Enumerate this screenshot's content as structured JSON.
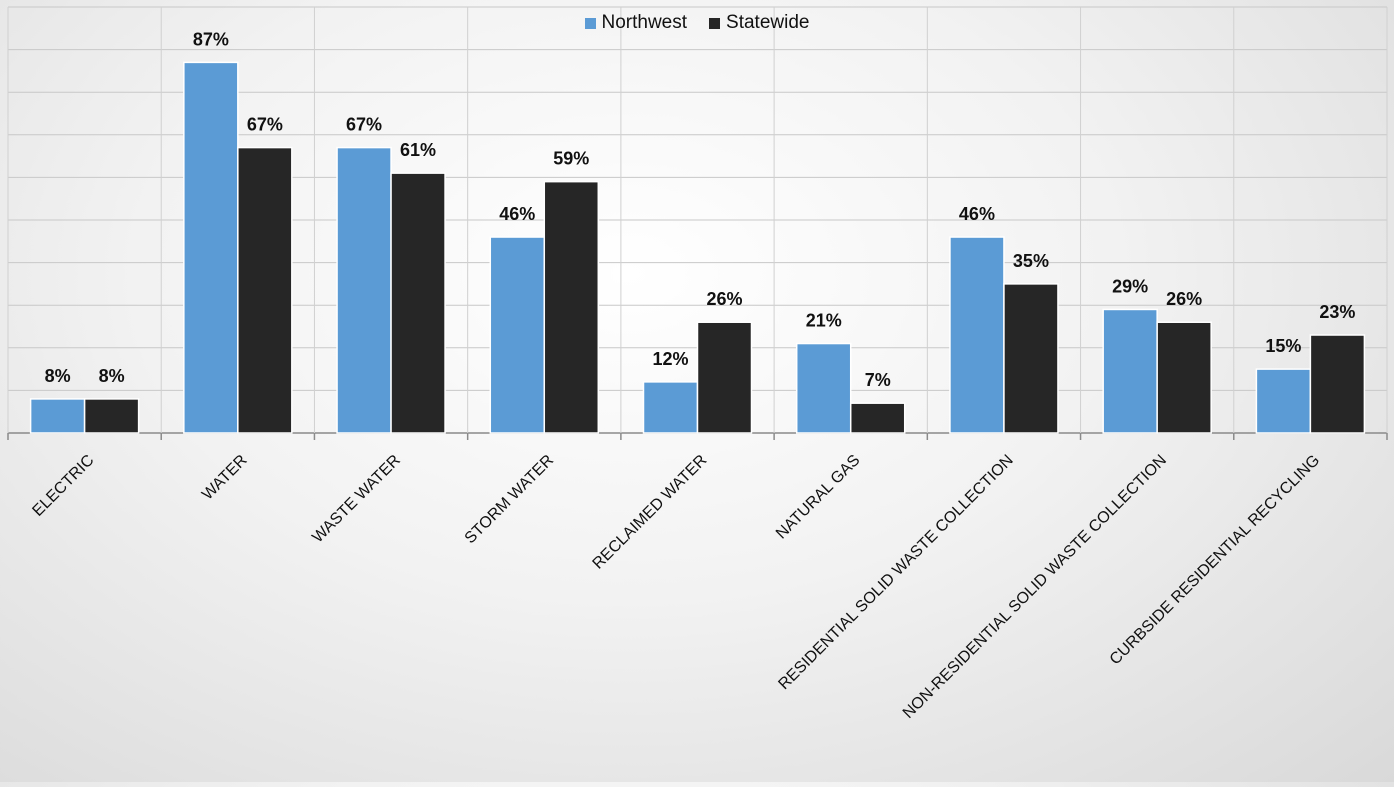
{
  "chart_data": {
    "type": "bar",
    "title": "",
    "xlabel": "",
    "ylabel": "",
    "ylim": [
      0,
      100
    ],
    "grid": true,
    "legend_position": "top-center",
    "categories": [
      "ELECTRIC",
      "WATER",
      "WASTE WATER",
      "STORM WATER",
      "RECLAIMED WATER",
      "NATURAL GAS",
      "RESIDENTIAL SOLID WASTE COLLECTION",
      "NON-RESIDENTIAL SOLID WASTE COLLECTION",
      "CURBSIDE RESIDENTIAL RECYCLING"
    ],
    "series": [
      {
        "name": "Northwest",
        "color": "#5b9bd5",
        "values": [
          8,
          87,
          67,
          46,
          12,
          21,
          46,
          29,
          15
        ],
        "labels": [
          "8%",
          "87%",
          "67%",
          "46%",
          "12%",
          "21%",
          "46%",
          "29%",
          "15%"
        ]
      },
      {
        "name": "Statewide",
        "color": "#262626",
        "values": [
          8,
          67,
          61,
          59,
          26,
          7,
          35,
          26,
          23
        ],
        "labels": [
          "8%",
          "67%",
          "61%",
          "59%",
          "26%",
          "7%",
          "35%",
          "26%",
          "23%"
        ]
      }
    ]
  }
}
